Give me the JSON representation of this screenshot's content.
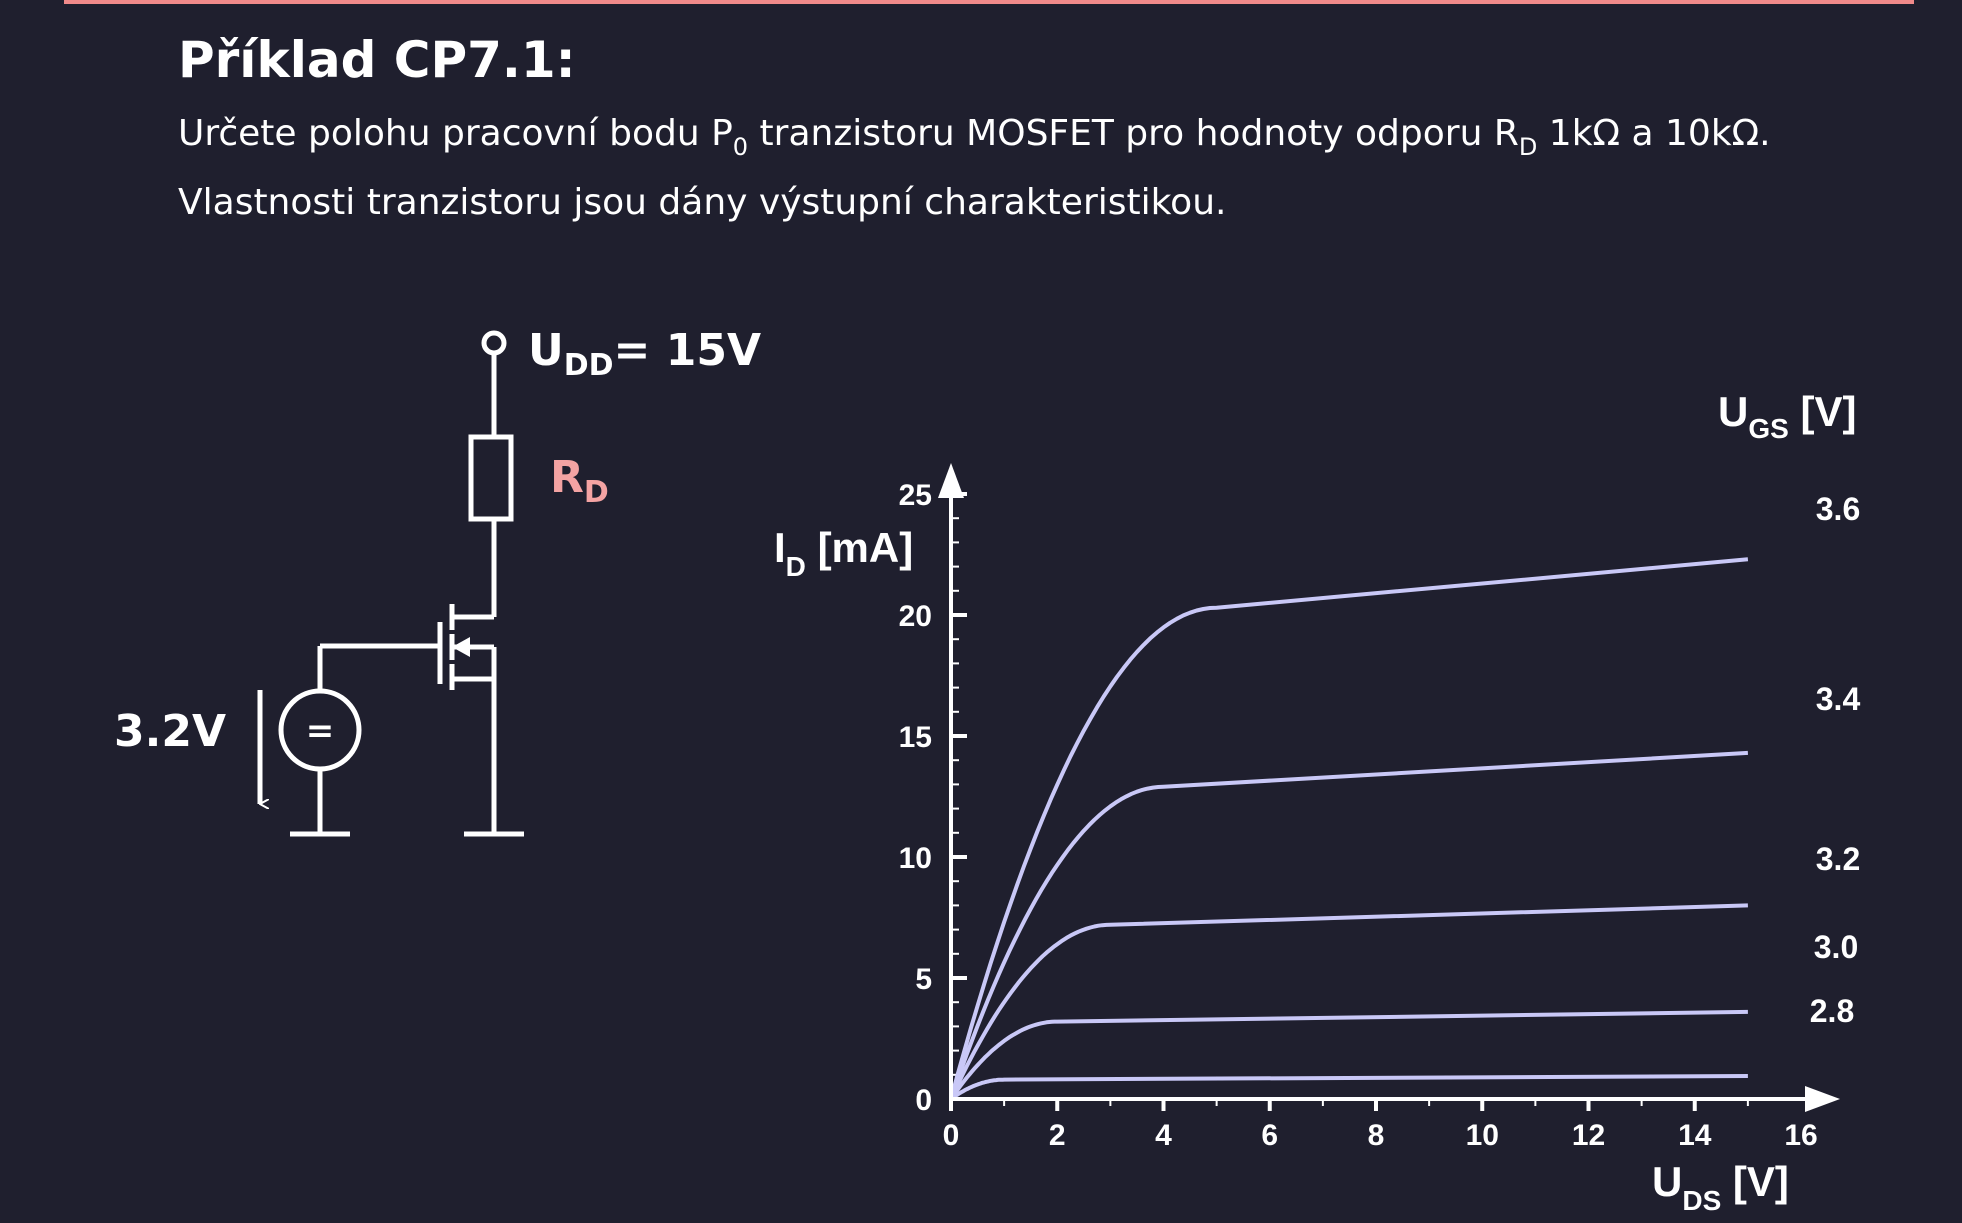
{
  "slide": {
    "title": "Příklad CP7.1:",
    "line1": {
      "pre": "Určete polohu pracovní bodu P",
      "p_sub": "0",
      "mid": " tranzistoru MOSFET pro hodnoty odporu R",
      "r_sub": "D",
      "post": " 1kΩ a 10kΩ."
    },
    "line2": "Vlastnosti tranzistoru jsou dány výstupní charakteristikou."
  },
  "circuit": {
    "udd_main": "U",
    "udd_sub": "DD",
    "udd_value": "= 15V",
    "rd_main": "R",
    "rd_sub": "D",
    "rd_color": "#f4a3a3",
    "source_voltage": "3.2V",
    "source_symbol": "="
  },
  "chart_data": {
    "type": "line",
    "x_axis": {
      "label_main": "U",
      "label_sub": "DS",
      "label_unit": " [V]",
      "min": 0,
      "max": 16,
      "ticks": [
        0,
        2,
        4,
        6,
        8,
        10,
        12,
        14,
        16
      ]
    },
    "y_axis": {
      "label_main": "I",
      "label_sub": "D",
      "label_unit": " [mA]",
      "min": 0,
      "max": 25,
      "ticks": [
        0,
        5,
        10,
        15,
        20,
        25
      ]
    },
    "legend_title": {
      "main": "U",
      "sub": "GS",
      "unit": " [V]"
    },
    "line_color": "#c9c8f7",
    "series": [
      {
        "name": "3.6",
        "knee_x": 5.0,
        "knee_y": 20.3,
        "end_y": 22.3
      },
      {
        "name": "3.4",
        "knee_x": 4.0,
        "knee_y": 12.9,
        "end_y": 14.3
      },
      {
        "name": "3.2",
        "knee_x": 3.0,
        "knee_y": 7.2,
        "end_y": 8.0
      },
      {
        "name": "3.0",
        "knee_x": 2.0,
        "knee_y": 3.2,
        "end_y": 3.6
      },
      {
        "name": "",
        "knee_x": 1.0,
        "knee_y": 0.8,
        "end_y": 0.95
      }
    ],
    "series_labels": [
      "3.6",
      "3.4",
      "3.2",
      "3.0",
      "2.8"
    ],
    "x_end": 15.0
  }
}
